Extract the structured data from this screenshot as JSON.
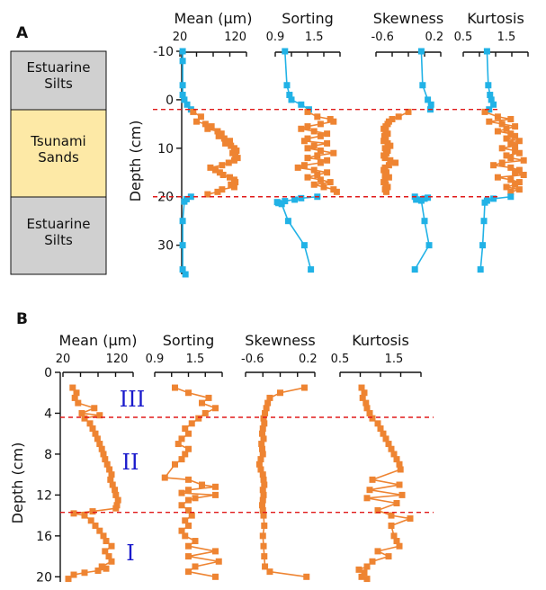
{
  "colors": {
    "orange": "#ee8432",
    "blue": "#21b2e6",
    "dashed": "#e01a1a",
    "silt": "#d0d0d0",
    "sand": "#fde9a6",
    "roman": "#1a1acc"
  },
  "panel_a": {
    "letter": "A",
    "strata": [
      "Estuarine Silts",
      "Tsunami Sands",
      "Estuarine Silts"
    ],
    "depth_label": "Depth (cm)"
  },
  "panel_b": {
    "letter": "B",
    "depth_label": "Depth (cm)",
    "units": [
      "III",
      "II",
      "I"
    ]
  },
  "chart_data": [
    {
      "type": "line",
      "panel": "A",
      "ylabel": "Depth (cm)",
      "ylim": [
        -10,
        36
      ],
      "yticks": [
        "-10",
        "0",
        "10",
        "20",
        "30"
      ],
      "boundaries": [
        2,
        20
      ],
      "tracks": [
        {
          "title": "Mean (µm)",
          "xlim": [
            20,
            140
          ],
          "ticks": [
            "20",
            "120"
          ],
          "blue_top": {
            "x": [
              25,
              25,
              25,
              25,
              28,
              33,
              40
            ],
            "y": [
              -10,
              -8,
              -3,
              -1,
              0,
              1,
              2
            ]
          },
          "orange": {
            "x": [
              44,
              58,
              50,
              66,
              77,
              70,
              88,
              95,
              90,
              100,
              110,
              102,
              112,
              118,
              122,
              115,
              120,
              124,
              118,
              108,
              96,
              75,
              84,
              92,
              98,
              110,
              118,
              120,
              112,
              118,
              96,
              88,
              70
            ],
            "y": [
              2.5,
              3.5,
              4.5,
              5,
              5.5,
              6,
              6.5,
              7,
              7.5,
              8,
              8.5,
              9,
              9.5,
              10,
              10.5,
              11,
              11.5,
              12,
              12.5,
              13,
              13.5,
              14,
              14.5,
              15,
              15.5,
              16,
              16.5,
              17,
              17.5,
              18,
              18.5,
              19,
              19.5
            ]
          },
          "blue_bottom": {
            "x": [
              40,
              32,
              28,
              25,
              25,
              25,
              30
            ],
            "y": [
              20,
              20.5,
              21,
              25,
              30,
              35,
              36
            ]
          }
        },
        {
          "title": "Sorting",
          "xlim": [
            0.9,
            1.9
          ],
          "ticks": [
            "0.9",
            "1.5"
          ],
          "blue_top": {
            "x": [
              1.05,
              1.08,
              1.12,
              1.15,
              1.3,
              1.42
            ],
            "y": [
              -10,
              -3,
              -1,
              0,
              1,
              2
            ]
          },
          "orange": {
            "x": [
              1.4,
              1.55,
              1.75,
              1.8,
              1.6,
              1.4,
              1.3,
              1.5,
              1.7,
              1.6,
              1.4,
              1.35,
              1.7,
              1.5,
              1.4,
              1.6,
              1.8,
              1.55,
              1.4,
              1.7,
              1.6,
              1.35,
              1.25,
              1.5,
              1.7,
              1.55,
              1.4,
              1.6,
              1.75,
              1.5,
              1.65,
              1.8,
              1.85
            ],
            "y": [
              2.5,
              3.5,
              4,
              4.5,
              5,
              5.5,
              6,
              6.5,
              7,
              7.5,
              8,
              8.5,
              9,
              9.5,
              10,
              10.5,
              11,
              11.5,
              12,
              12.5,
              13,
              13.5,
              14,
              14.5,
              15,
              15.5,
              16,
              16.5,
              17,
              17.5,
              18,
              18.5,
              19
            ]
          },
          "blue_bottom": {
            "x": [
              1.55,
              1.3,
              1.2,
              1.05,
              0.93,
              0.95,
              1.0,
              1.1,
              1.35,
              1.45
            ],
            "y": [
              20,
              20.3,
              20.6,
              20.9,
              21.1,
              21.3,
              21.5,
              25,
              30,
              35
            ]
          }
        },
        {
          "title": "Skewness",
          "xlim": [
            -0.7,
            0.3
          ],
          "ticks": [
            "-0.6",
            "0.2"
          ],
          "blue_top": {
            "x": [
              0.0,
              0.02,
              0.1,
              0.15,
              0.14
            ],
            "y": [
              -10,
              -3,
              0,
              1,
              2
            ]
          },
          "orange": {
            "x": [
              -0.2,
              -0.35,
              -0.45,
              -0.5,
              -0.52,
              -0.55,
              -0.58,
              -0.55,
              -0.52,
              -0.57,
              -0.55,
              -0.58,
              -0.52,
              -0.48,
              -0.56,
              -0.52,
              -0.54,
              -0.58,
              -0.56,
              -0.48,
              -0.4,
              -0.5,
              -0.56,
              -0.58,
              -0.54,
              -0.56,
              -0.5,
              -0.56,
              -0.58,
              -0.55,
              -0.52,
              -0.56,
              -0.54
            ],
            "y": [
              2.5,
              3.5,
              4,
              4.5,
              5,
              5.5,
              6,
              6.5,
              7,
              7.5,
              8,
              8.5,
              9,
              9.5,
              10,
              10.5,
              11,
              11.5,
              12,
              12.5,
              13,
              13.5,
              14,
              14.5,
              15,
              15.5,
              16,
              16.5,
              17,
              17.5,
              18,
              18.5,
              19
            ]
          },
          "blue_bottom": {
            "x": [
              -0.1,
              0.1,
              0.05,
              -0.08,
              0.0,
              0.05,
              0.12,
              -0.1
            ],
            "y": [
              20,
              20.2,
              20.4,
              20.6,
              20.8,
              25,
              30,
              35
            ]
          }
        },
        {
          "title": "Kurtosis",
          "xlim": [
            0.5,
            2.0
          ],
          "ticks": [
            "0.5",
            "1.5"
          ],
          "blue_top": {
            "x": [
              1.05,
              1.08,
              1.12,
              1.15,
              1.2,
              1.1
            ],
            "y": [
              -10,
              -3,
              -1,
              0,
              1,
              2
            ]
          },
          "orange": {
            "x": [
              1.0,
              1.3,
              1.6,
              1.1,
              1.4,
              1.7,
              1.5,
              1.3,
              1.6,
              1.7,
              1.5,
              1.8,
              1.6,
              1.7,
              1.4,
              1.7,
              1.8,
              1.5,
              1.6,
              1.9,
              1.4,
              1.2,
              1.6,
              1.8,
              1.7,
              1.9,
              1.3,
              1.6,
              1.8,
              1.7,
              1.5,
              1.8,
              1.6
            ],
            "y": [
              2.5,
              3.5,
              4,
              4.5,
              5,
              5.5,
              6,
              6.5,
              7,
              7.5,
              8,
              8.5,
              9,
              9.5,
              10,
              10.5,
              11,
              11.5,
              12,
              12.5,
              13,
              13.5,
              14,
              14.5,
              15,
              15.5,
              16,
              16.5,
              17,
              17.5,
              18,
              18.5,
              19
            ]
          },
          "blue_bottom": {
            "x": [
              1.6,
              1.2,
              1.05,
              1.0,
              0.98,
              0.95,
              0.9
            ],
            "y": [
              20,
              20.4,
              20.8,
              21.2,
              25,
              30,
              35
            ]
          }
        }
      ]
    },
    {
      "type": "line",
      "panel": "B",
      "ylabel": "Depth (cm)",
      "ylim": [
        0,
        20.5
      ],
      "yticks": [
        "0",
        "4",
        "8",
        "12",
        "16",
        "20"
      ],
      "boundaries": [
        4.4,
        13.7
      ],
      "tracks": [
        {
          "title": "Mean (µm)",
          "xlim": [
            20,
            150
          ],
          "ticks": [
            "20",
            "120"
          ],
          "orange": {
            "x": [
              38,
              45,
              42,
              48,
              78,
              55,
              88,
              60,
              70,
              75,
              80,
              84,
              88,
              92,
              95,
              98,
              102,
              106,
              110,
              108,
              112,
              116,
              118,
              122,
              120,
              118,
              75,
              40,
              60,
              72,
              80,
              88,
              95,
              100,
              110,
              98,
              105,
              110,
              92,
              100,
              85,
              60,
              40,
              30
            ],
            "y": [
              1.5,
              2,
              2.5,
              3,
              3.5,
              4,
              4.2,
              4.5,
              5,
              5.5,
              6,
              6.5,
              7,
              7.5,
              8,
              8.5,
              9,
              9.5,
              10,
              10.5,
              11,
              11.5,
              12,
              12.5,
              13,
              13.3,
              13.6,
              13.8,
              14,
              14.5,
              15,
              15.5,
              16,
              16.5,
              17,
              17.5,
              18,
              18.5,
              19,
              19.2,
              19.4,
              19.6,
              19.8,
              20.2
            ]
          }
        },
        {
          "title": "Sorting",
          "xlim": [
            0.9,
            1.9
          ],
          "ticks": [
            "0.9",
            "1.5"
          ],
          "orange": {
            "x": [
              1.2,
              1.4,
              1.7,
              1.6,
              1.8,
              1.65,
              1.55,
              1.45,
              1.35,
              1.4,
              1.3,
              1.25,
              1.4,
              1.35,
              1.3,
              1.2,
              1.05,
              1.4,
              1.6,
              1.8,
              1.4,
              1.3,
              1.8,
              1.5,
              1.4,
              1.3,
              1.4,
              1.45,
              1.35,
              1.4,
              1.3,
              1.35,
              1.5,
              1.4,
              1.8,
              1.4,
              1.85,
              1.5,
              1.4,
              1.8
            ],
            "y": [
              1.5,
              2,
              2.5,
              3,
              3.5,
              4,
              4.5,
              5,
              5.5,
              6,
              6.5,
              7,
              7.5,
              8,
              8.5,
              9,
              10.3,
              10.5,
              11,
              11.2,
              11.5,
              11.8,
              12,
              12.3,
              12.5,
              13,
              13.5,
              14,
              14.5,
              15,
              15.5,
              16,
              16.5,
              17,
              17.5,
              18,
              18.5,
              19,
              19.5,
              20
            ]
          }
        },
        {
          "title": "Skewness",
          "xlim": [
            -0.7,
            0.3
          ],
          "ticks": [
            "-0.6",
            "0.2"
          ],
          "orange": {
            "x": [
              0.15,
              -0.2,
              -0.35,
              -0.38,
              -0.4,
              -0.42,
              -0.44,
              -0.43,
              -0.45,
              -0.46,
              -0.44,
              -0.47,
              -0.46,
              -0.45,
              -0.48,
              -0.5,
              -0.48,
              -0.45,
              -0.44,
              -0.43,
              -0.45,
              -0.44,
              -0.45,
              -0.46,
              -0.45,
              -0.44,
              -0.43,
              -0.45,
              -0.44,
              -0.43,
              -0.42,
              -0.35,
              0.18
            ],
            "y": [
              1.5,
              2,
              2.5,
              3,
              3.5,
              4,
              4.5,
              5,
              5.5,
              6,
              6.5,
              7,
              7.5,
              8,
              8.5,
              9,
              9.5,
              10,
              10.5,
              11,
              11.5,
              12,
              12.5,
              13,
              13.5,
              14,
              15,
              16,
              17,
              18,
              19,
              19.5,
              20
            ]
          }
        },
        {
          "title": "Kurtosis",
          "xlim": [
            0.5,
            2.0
          ],
          "ticks": [
            "0.5",
            "1.5"
          ],
          "orange": {
            "x": [
              0.9,
              0.95,
              0.92,
              0.98,
              1.0,
              1.05,
              1.1,
              1.2,
              1.25,
              1.3,
              1.35,
              1.4,
              1.45,
              1.5,
              1.55,
              1.6,
              1.62,
              1.1,
              1.6,
              1.05,
              1.65,
              1.0,
              1.55,
              1.2,
              1.45,
              1.8,
              1.45,
              1.5,
              1.55,
              1.6,
              1.2,
              1.4,
              1.1,
              1.0,
              0.85,
              0.95,
              0.9,
              1.0
            ],
            "y": [
              1.5,
              2,
              2.5,
              3,
              3.5,
              4,
              4.5,
              5,
              5.5,
              6,
              6.5,
              7,
              7.5,
              8,
              8.5,
              9,
              9.5,
              10.5,
              11,
              11.5,
              12,
              12.3,
              12.8,
              13.5,
              14,
              14.3,
              15,
              16,
              16.5,
              17,
              17.5,
              18,
              18.5,
              19,
              19.3,
              19.6,
              20,
              20.2
            ]
          }
        }
      ]
    }
  ]
}
